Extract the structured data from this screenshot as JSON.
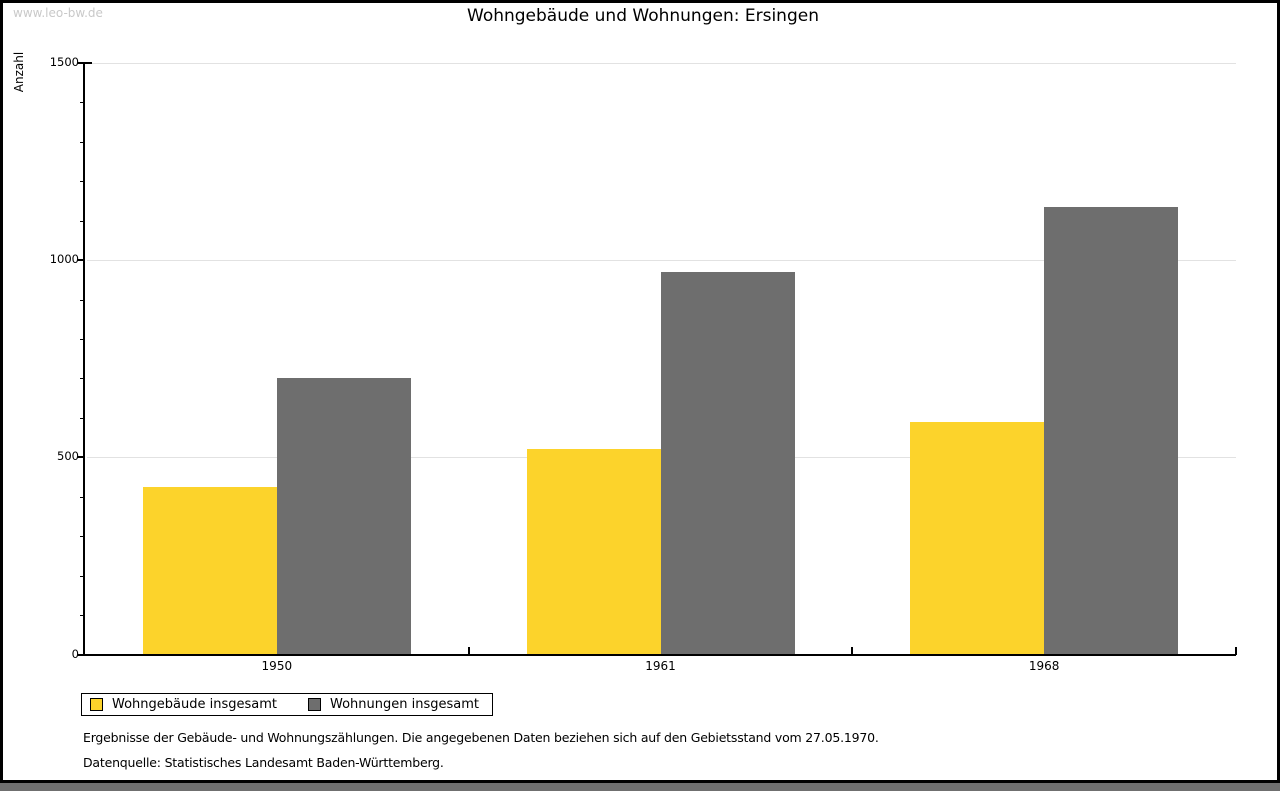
{
  "watermark": "www.leo-bw.de",
  "chart_data": {
    "type": "bar",
    "title": "Wohngebäude und Wohnungen: Ersingen",
    "ylabel": "Anzahl",
    "xlabel": "",
    "categories": [
      "1950",
      "1961",
      "1968"
    ],
    "series": [
      {
        "name": "Wohngebäude insgesamt",
        "color": "#FCD32B",
        "values": [
          425,
          520,
          590
        ]
      },
      {
        "name": "Wohnungen insgesamt",
        "color": "#6E6E6E",
        "values": [
          700,
          970,
          1135
        ]
      }
    ],
    "ylim": [
      0,
      1500
    ],
    "yticks": [
      0,
      500,
      1000,
      1500
    ],
    "y_minor_step": 100,
    "grid": true,
    "legend_position": "bottom-left"
  },
  "footnotes": {
    "line1": "Ergebnisse der Gebäude- und Wohnungszählungen. Die angegebenen Daten beziehen sich auf den Gebietsstand vom 27.05.1970.",
    "line2": "Datenquelle: Statistisches Landesamt Baden-Württemberg."
  },
  "colors": {
    "grid": "#E2E2E2",
    "axis": "#000000",
    "watermark": "#C9C9C9",
    "bottom_strip": "#6F6F6F"
  }
}
